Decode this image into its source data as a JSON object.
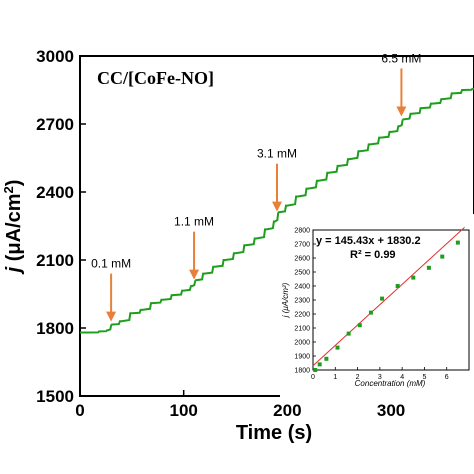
{
  "colors": {
    "trace": "#1e9e1e",
    "arrow": "#e8803a",
    "fit_line": "#e03030",
    "inset_points": "#1e9e1e",
    "axes": "#000000"
  },
  "chart_data": [
    {
      "type": "line",
      "label": "CC/[CoFe-NO]",
      "xlabel": "Time (s)",
      "ylabel": "j (μA/cm²)",
      "ylabel_parts": {
        "symbol": "j",
        "unit": " (μA/cm",
        "sup": "2",
        "close": ")"
      },
      "xlim": [
        0,
        380
      ],
      "ylim": [
        1500,
        3000
      ],
      "x_ticks": [
        0,
        100,
        200,
        300
      ],
      "x_tick_labels": [
        "0",
        "100",
        "200",
        "300"
      ],
      "y_ticks": [
        1500,
        1800,
        2100,
        2400,
        2700,
        3000
      ],
      "y_tick_labels": [
        "1500",
        "1800",
        "2100",
        "2400",
        "2700",
        "3000"
      ],
      "grid": false,
      "series": [
        {
          "x": [
            0,
            10,
            20,
            27,
            30,
            40,
            50,
            60,
            70,
            80,
            90,
            100,
            108,
            111,
            120,
            130,
            140,
            150,
            160,
            170,
            180,
            188,
            191,
            200,
            210,
            220,
            230,
            240,
            250,
            260,
            270,
            280,
            290,
            300,
            308,
            311,
            320,
            330,
            340,
            350,
            360,
            370,
            380
          ],
          "y": [
            1780,
            1780,
            1785,
            1790,
            1815,
            1830,
            1865,
            1880,
            1910,
            1925,
            1945,
            1965,
            1985,
            2010,
            2040,
            2070,
            2100,
            2130,
            2165,
            2195,
            2235,
            2270,
            2310,
            2340,
            2380,
            2415,
            2450,
            2485,
            2515,
            2545,
            2580,
            2610,
            2640,
            2665,
            2690,
            2720,
            2745,
            2770,
            2790,
            2810,
            2835,
            2850,
            2855
          ]
        }
      ],
      "annotations": [
        {
          "text": "0.1 mM",
          "x": 30,
          "y": 1815
        },
        {
          "text": "1.1 mM",
          "x": 110,
          "y": 2000
        },
        {
          "text": "3.1 mM",
          "x": 190,
          "y": 2300
        },
        {
          "text": "6.5 mM",
          "x": 310,
          "y": 2720
        }
      ]
    },
    {
      "type": "scatter",
      "xlabel": "Concentration (mM)",
      "ylabel": "j (μA/cm²)",
      "xlim": [
        0,
        7
      ],
      "ylim": [
        1800,
        2800
      ],
      "x_ticks": [
        0,
        1,
        2,
        3,
        4,
        5,
        6
      ],
      "x_tick_labels": [
        "0",
        "1",
        "2",
        "3",
        "4",
        "5",
        "6"
      ],
      "y_ticks": [
        1800,
        1900,
        2000,
        2100,
        2200,
        2300,
        2400,
        2500,
        2600,
        2700,
        2800
      ],
      "y_tick_labels": [
        "1800",
        "1900",
        "2000",
        "2100",
        "2200",
        "2300",
        "2400",
        "2500",
        "2600",
        "2700",
        "2800"
      ],
      "grid": false,
      "points": {
        "x": [
          0.1,
          0.3,
          0.6,
          1.1,
          1.6,
          2.1,
          2.6,
          3.1,
          3.8,
          4.5,
          5.2,
          5.8,
          6.5
        ],
        "y": [
          1800,
          1840,
          1880,
          1960,
          2060,
          2120,
          2210,
          2310,
          2400,
          2460,
          2530,
          2610,
          2710
        ]
      },
      "fit": {
        "slope": 145.43,
        "intercept": 1830.2,
        "x_range": [
          0,
          6.8
        ]
      },
      "equation": "y = 145.43x + 1830.2",
      "r_squared": "R² = 0.99"
    }
  ]
}
